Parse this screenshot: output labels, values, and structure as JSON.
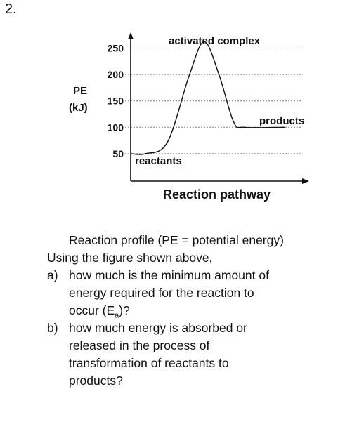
{
  "question_number": "2.",
  "chart_data": {
    "type": "line",
    "title": "",
    "ylabel_line1": "PE",
    "ylabel_line2": "(kJ)",
    "xlabel": "Reaction pathway",
    "y_ticks": [
      50,
      100,
      150,
      200,
      250
    ],
    "y_tick_labels": [
      "50",
      "100",
      "150",
      "200",
      "250"
    ],
    "ylim": [
      0,
      270
    ],
    "grid": "dotted-horizontal",
    "series": [
      {
        "points": [
          [
            0,
            50
          ],
          [
            0.4,
            50
          ],
          [
            1,
            72
          ],
          [
            1.6,
            200
          ],
          [
            2.0,
            262
          ],
          [
            2.4,
            200
          ],
          [
            2.8,
            110
          ],
          [
            3.1,
            100
          ],
          [
            4.2,
            100
          ]
        ]
      }
    ],
    "xlim": [
      0,
      4.7
    ],
    "annotations": {
      "peak": "activated complex",
      "start": "reactants",
      "end": "products"
    }
  },
  "caption": "Reaction profile (PE = potential energy)",
  "intro": "Using the figure shown above,",
  "questions": [
    {
      "letter": "a)",
      "line1": "how much is the minimum amount of",
      "line2": "energy required for the reaction to",
      "line3_pre": "occur (E",
      "line3_sub": "a",
      "line3_post": ")?"
    },
    {
      "letter": "b)",
      "line1": "how much energy is absorbed or",
      "line2": "released in the process of",
      "line3": "transformation of reactants to",
      "line4": "products?"
    }
  ]
}
